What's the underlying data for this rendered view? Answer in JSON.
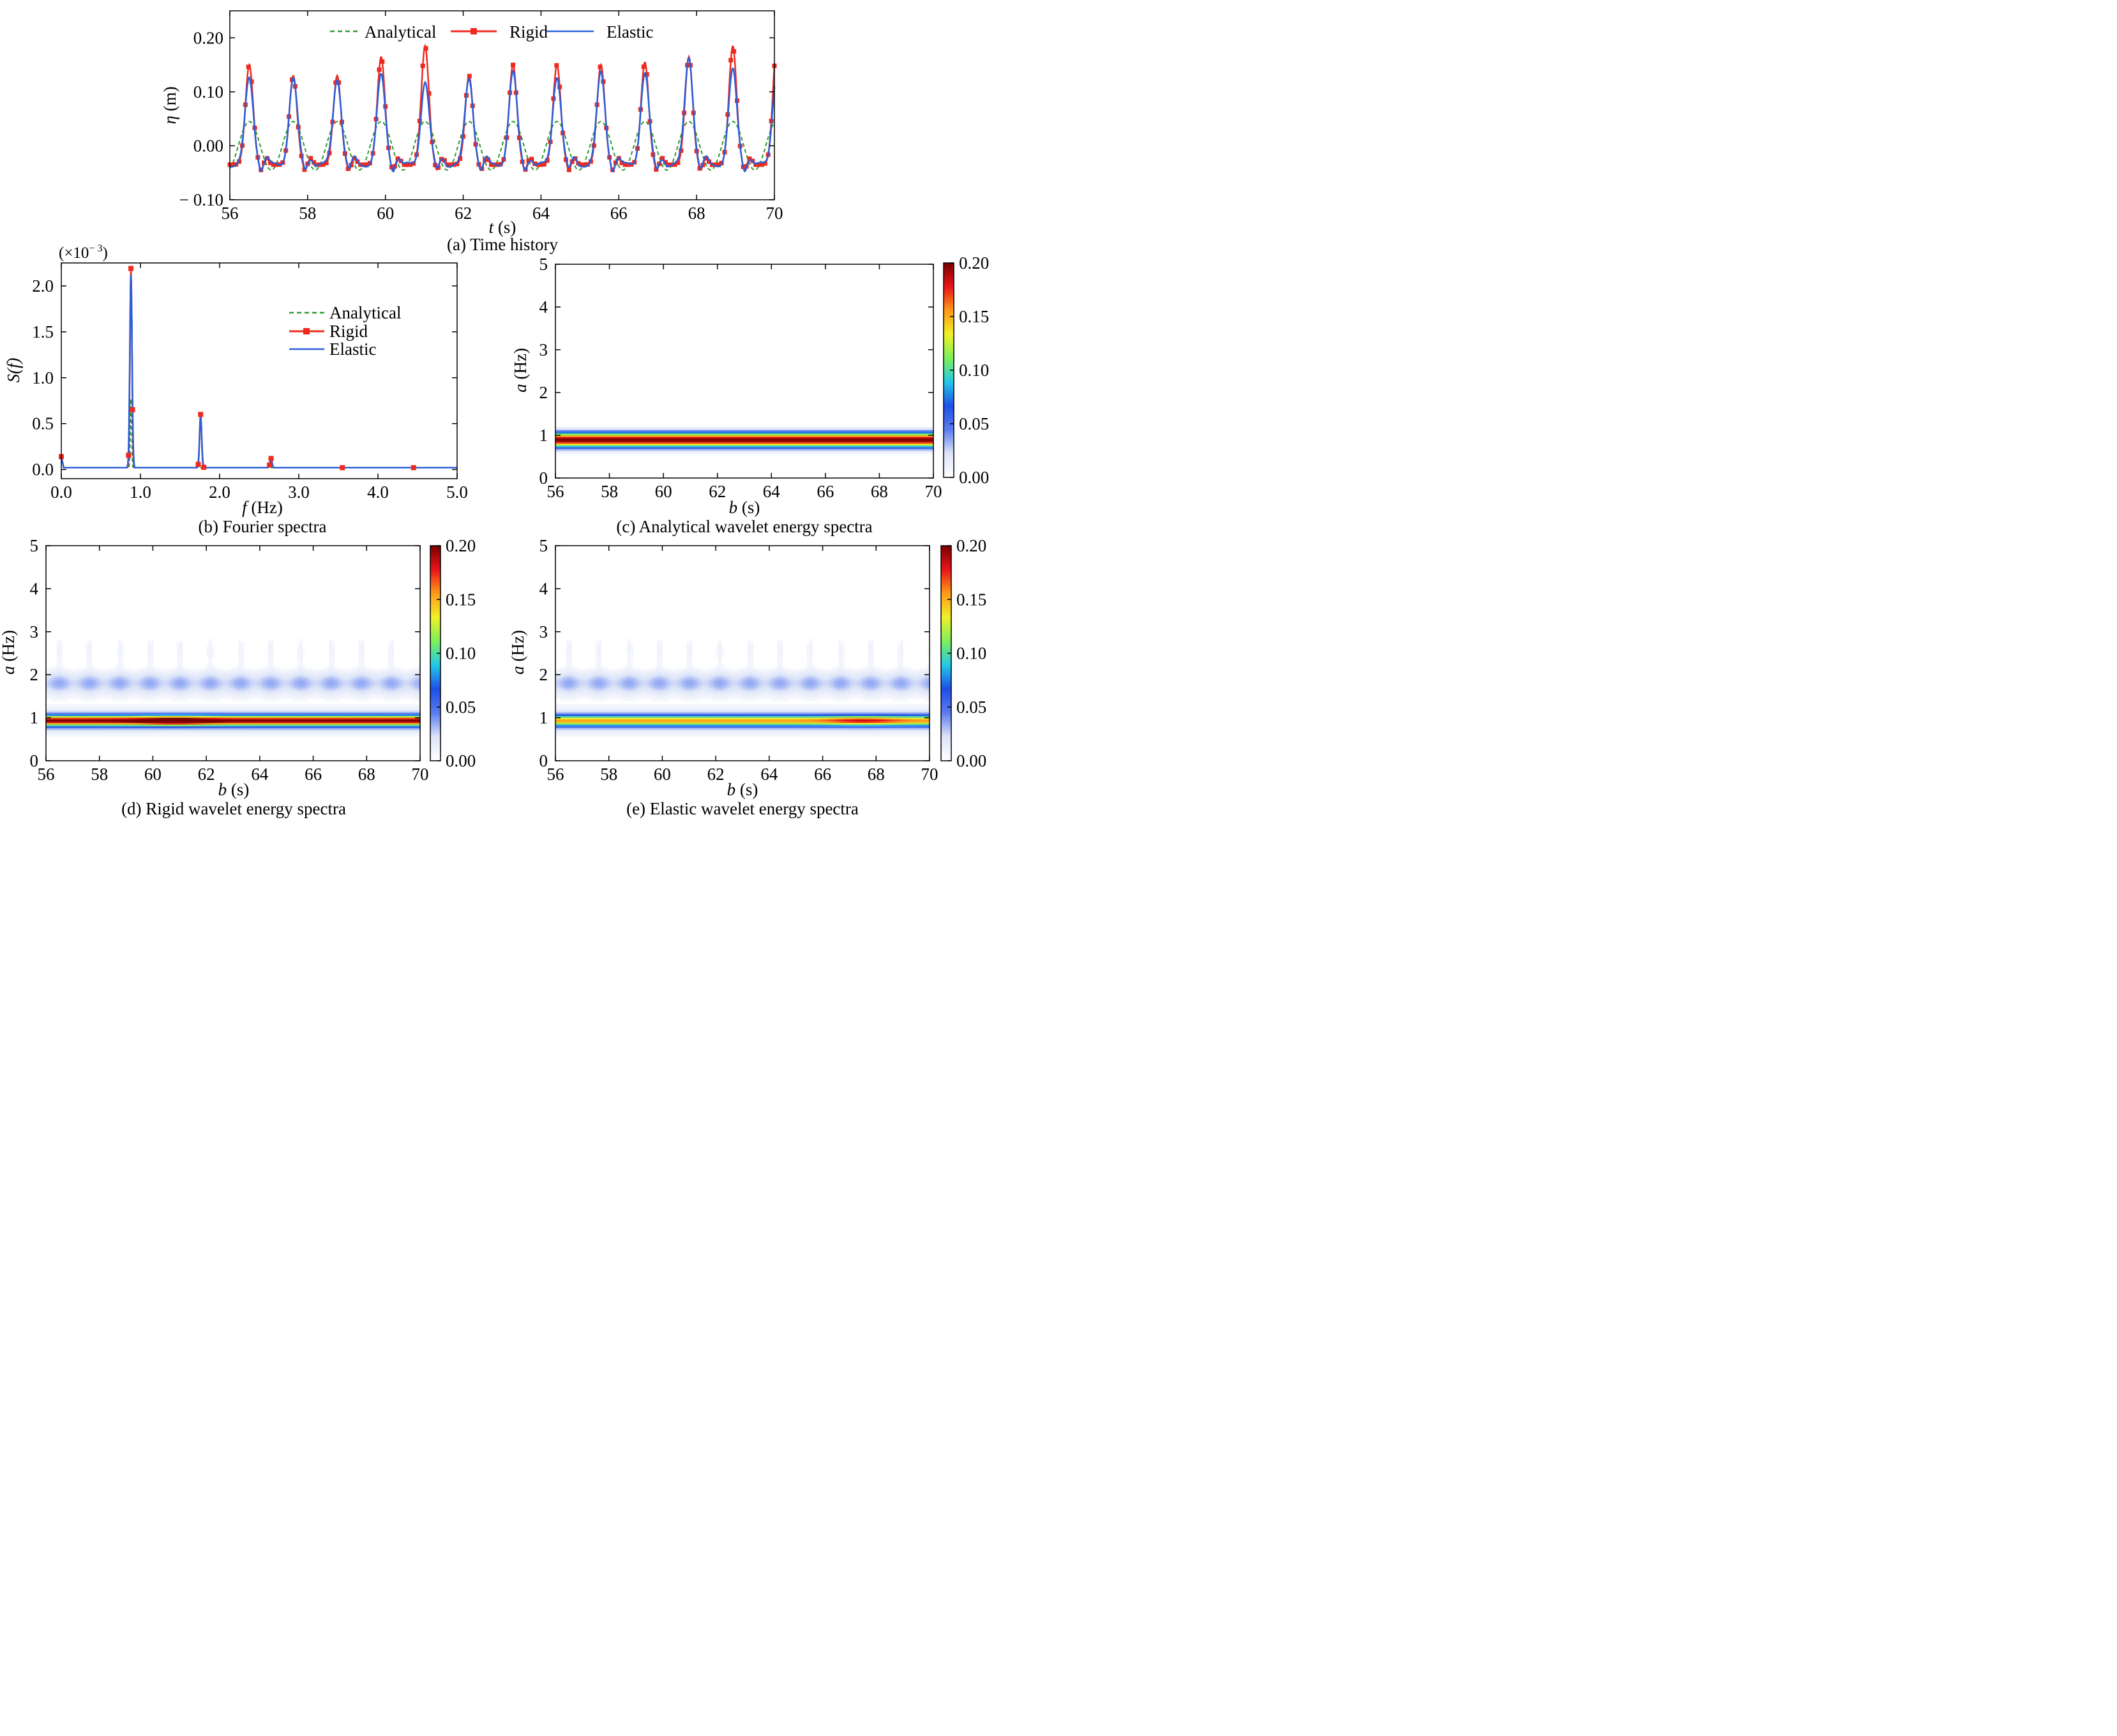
{
  "colors": {
    "analytical": "#2b9a2b",
    "rigid": "#ee2a1f",
    "elastic": "#2a5fd8",
    "colormap": [
      "#ffffff",
      "#dde4f8",
      "#5b7cf0",
      "#1e4fe8",
      "#22c8e8",
      "#7df05a",
      "#f0f028",
      "#ff9a1a",
      "#e8141a",
      "#7a0000"
    ]
  },
  "chart_data": [
    {
      "id": "a",
      "type": "line",
      "caption": "(a) Time history",
      "xlabel_italic": "t",
      "xlabel_unit": " (s)",
      "ylabel_italic": "η",
      "ylabel_unit": " (m)",
      "xlim": [
        56,
        70
      ],
      "ylim": [
        -0.1,
        0.25
      ],
      "xticks": [
        56,
        58,
        60,
        62,
        64,
        66,
        68,
        70
      ],
      "yticks": [
        -0.1,
        0.0,
        0.1,
        0.2
      ],
      "ytick_labels": [
        "− 0.10",
        "0.00",
        "0.10",
        "0.20"
      ],
      "legend_position": "top",
      "legend": [
        "Analytical",
        "Rigid",
        "Elastic"
      ],
      "period_s": 1.13,
      "first_crest_s": 56.5,
      "analytical_amplitude_m": 0.045,
      "analytical_mean_m": 0.0,
      "trough_level_m": -0.035,
      "peaks": {
        "t": [
          56.5,
          57.63,
          58.76,
          59.89,
          61.02,
          62.15,
          63.28,
          64.41,
          65.54,
          66.67,
          67.8,
          68.93
        ],
        "rigid": [
          0.15,
          0.13,
          0.13,
          0.165,
          0.185,
          0.13,
          0.15,
          0.15,
          0.15,
          0.155,
          0.165,
          0.185
        ],
        "elastic": [
          0.125,
          0.125,
          0.125,
          0.13,
          0.12,
          0.125,
          0.135,
          0.13,
          0.135,
          0.135,
          0.165,
          0.14
        ]
      }
    },
    {
      "id": "b",
      "type": "line",
      "caption": "(b) Fourier spectra",
      "xlabel_italic": "f",
      "xlabel_unit": " (Hz)",
      "ylabel": "S(f)",
      "multiplier": "(×10",
      "multiplier_exp": "− 3",
      "multiplier_close": ")",
      "xlim": [
        0,
        5
      ],
      "ylim": [
        -0.1,
        2.25
      ],
      "xticks": [
        0.0,
        1.0,
        2.0,
        3.0,
        4.0,
        5.0
      ],
      "xtick_labels": [
        "0.0",
        "1.0",
        "2.0",
        "3.0",
        "4.0",
        "5.0"
      ],
      "yticks": [
        0.0,
        0.5,
        1.0,
        1.5,
        2.0
      ],
      "ytick_labels": [
        "0.0",
        "0.5",
        "1.0",
        "1.5",
        "2.0"
      ],
      "legend_position": "upper right",
      "legend": [
        "Analytical",
        "Rigid",
        "Elastic"
      ],
      "peaks": {
        "f": [
          0.88,
          1.76,
          2.65
        ],
        "rigid": [
          2.17,
          0.58,
          0.1
        ],
        "elastic": [
          2.1,
          0.55,
          0.07
        ],
        "analytical": [
          0.75,
          0.0,
          0.0
        ]
      },
      "baseline": 0.02
    },
    {
      "id": "c",
      "type": "heatmap",
      "caption": "(c) Analytical wavelet energy spectra",
      "xlabel_italic": "b",
      "xlabel_unit": " (s)",
      "ylabel_italic": "a",
      "ylabel_unit": " (Hz)",
      "xlim": [
        56,
        70
      ],
      "ylim": [
        0,
        5
      ],
      "xticks": [
        56,
        58,
        60,
        62,
        64,
        66,
        68,
        70
      ],
      "yticks": [
        0,
        1,
        2,
        3,
        4,
        5
      ],
      "colorbar_ticks": [
        "0.00",
        "0.05",
        "0.10",
        "0.15",
        "0.20"
      ],
      "band_hz": 0.89,
      "band_peak": 0.2
    },
    {
      "id": "d",
      "type": "heatmap",
      "caption": "(d) Rigid wavelet energy spectra",
      "xlabel_italic": "b",
      "xlabel_unit": " (s)",
      "ylabel_italic": "a",
      "ylabel_unit": " (Hz)",
      "xlim": [
        56,
        70
      ],
      "ylim": [
        0,
        5
      ],
      "xticks": [
        56,
        58,
        60,
        62,
        64,
        66,
        68,
        70
      ],
      "yticks": [
        0,
        1,
        2,
        3,
        4,
        5
      ],
      "colorbar_ticks": [
        "0.00",
        "0.05",
        "0.10",
        "0.15",
        "0.20"
      ],
      "band_hz": 0.93,
      "band_peak": 0.17,
      "hotspot_s": 60.8,
      "hotspot_peak": 0.21,
      "second_band_hz": 1.8,
      "second_band_level": 0.035
    },
    {
      "id": "e",
      "type": "heatmap",
      "caption": "(e) Elastic wavelet energy spectra",
      "xlabel_italic": "b",
      "xlabel_unit": " (s)",
      "ylabel_italic": "a",
      "ylabel_unit": " (Hz)",
      "xlim": [
        56,
        70
      ],
      "ylim": [
        0,
        5
      ],
      "xticks": [
        56,
        58,
        60,
        62,
        64,
        66,
        68,
        70
      ],
      "yticks": [
        0,
        1,
        2,
        3,
        4,
        5
      ],
      "colorbar_ticks": [
        "0.00",
        "0.05",
        "0.10",
        "0.15",
        "0.20"
      ],
      "band_hz": 0.93,
      "band_peak": 0.125,
      "hotspot_s": 67.5,
      "hotspot_peak": 0.155,
      "second_band_hz": 1.8,
      "second_band_level": 0.035
    }
  ]
}
